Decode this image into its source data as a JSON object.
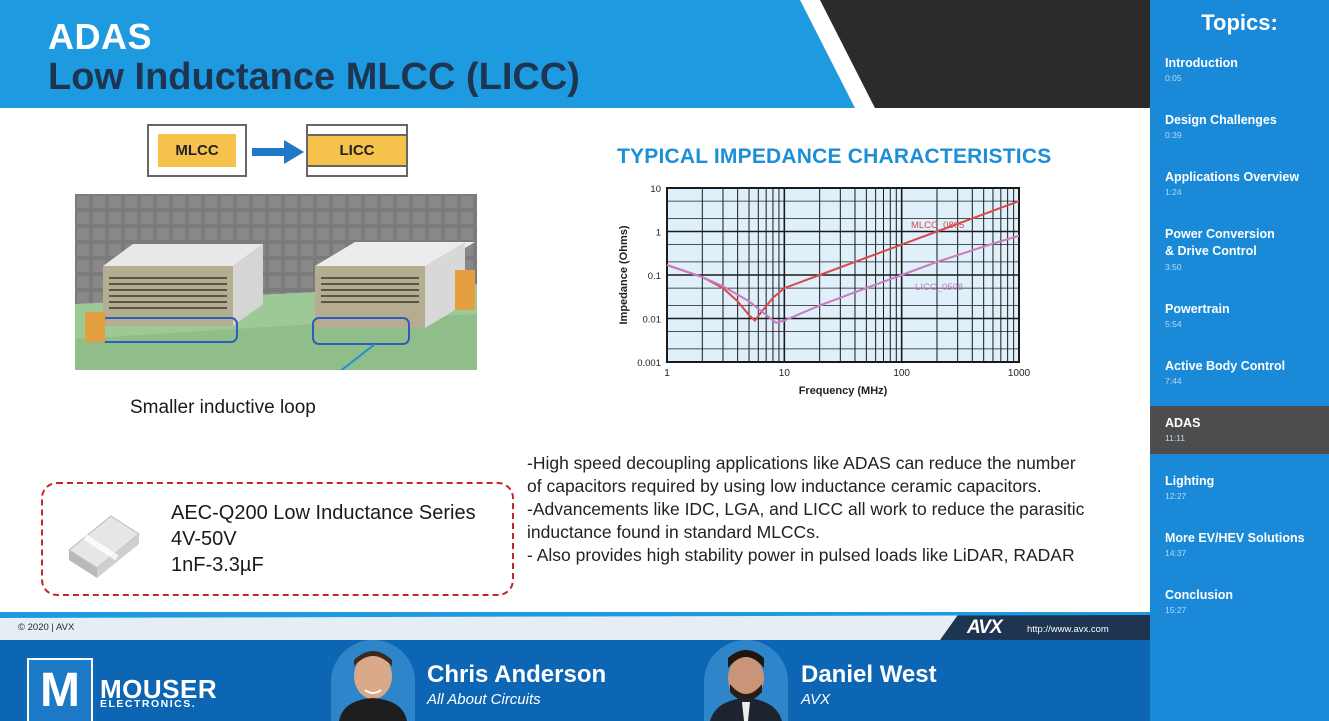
{
  "slide": {
    "title_line1": "ADAS",
    "title_line2": "Low Inductance MLCC (LICC)",
    "diagram": {
      "left_chip_label": "MLCC",
      "right_chip_label": "LICC",
      "caption": "Smaller inductive loop"
    },
    "chart_title": "TYPICAL IMPEDANCE CHARACTERISTICS",
    "bullets": [
      "-High speed decoupling applications like ADAS can reduce the number",
      "of capacitors required by using low inductance ceramic capacitors.",
      "-Advancements like IDC, LGA, and LICC all work to reduce the parasitic",
      "inductance found in standard MLCCs.",
      "- Also provides high stability power in pulsed loads like LiDAR, RADAR"
    ],
    "product_card": {
      "line1": "AEC-Q200 Low Inductance Series",
      "line2": "4V-50V",
      "line3": "1nF-3.3µF"
    },
    "footer": {
      "copyright": "© 2020 | AVX",
      "logo": "AVX",
      "url": "http://www.avx.com"
    }
  },
  "chart_data": {
    "type": "line",
    "title": "TYPICAL IMPEDANCE CHARACTERISTICS",
    "xlabel": "Frequency (MHz)",
    "ylabel": "Impedance (Ohms)",
    "x_scale": "log",
    "y_scale": "log",
    "xlim": [
      1,
      1000
    ],
    "ylim": [
      0.001,
      10
    ],
    "x_ticks": [
      "1",
      "10",
      "100",
      "1000"
    ],
    "y_ticks": [
      "10",
      "1",
      "0.1",
      "0.01",
      "0.001"
    ],
    "grid": true,
    "series": [
      {
        "name": "MLCC_0805",
        "color": "#d9494f",
        "x": [
          1,
          2,
          3,
          4,
          5,
          5.6,
          6.5,
          8,
          10,
          20,
          50,
          100,
          200,
          500,
          1000
        ],
        "y": [
          0.17,
          0.09,
          0.05,
          0.025,
          0.012,
          0.009,
          0.015,
          0.03,
          0.05,
          0.1,
          0.25,
          0.5,
          1.0,
          2.5,
          5.0
        ]
      },
      {
        "name": "LICC_0508",
        "color": "#c97bbe",
        "x": [
          1,
          2,
          3,
          5,
          7,
          8.5,
          10,
          20,
          50,
          100,
          200,
          500,
          1000
        ],
        "y": [
          0.17,
          0.09,
          0.055,
          0.025,
          0.012,
          0.008,
          0.009,
          0.02,
          0.05,
          0.1,
          0.2,
          0.45,
          0.8
        ]
      }
    ]
  },
  "sidebar": {
    "title": "Topics:",
    "active_index": 6,
    "items": [
      {
        "label": "Introduction",
        "time": "0:05"
      },
      {
        "label": "Design Challenges",
        "time": "0:39"
      },
      {
        "label": "Applications Overview",
        "time": "1:24"
      },
      {
        "label": "Power Conversion\n& Drive Control",
        "time": "3:50"
      },
      {
        "label": "Powertrain",
        "time": "5:54"
      },
      {
        "label": "Active Body Control",
        "time": "7:44"
      },
      {
        "label": "ADAS",
        "time": "11:11"
      },
      {
        "label": "Lighting",
        "time": "12:27"
      },
      {
        "label": "More EV/HEV Solutions",
        "time": "14:37"
      },
      {
        "label": "Conclusion",
        "time": "15:27"
      }
    ]
  },
  "bottom": {
    "brand_mark": "M",
    "brand_name": "MOUSER",
    "brand_sub": "ELECTRONICS.",
    "speakers": [
      {
        "name": "Chris Anderson",
        "org": "All About Circuits"
      },
      {
        "name": "Daniel West",
        "org": "AVX"
      }
    ]
  },
  "colors": {
    "accent_blue": "#1d8fd8",
    "header_dark": "#2b2b2b",
    "sidebar_blue": "#1a8ad8",
    "active_topic": "#4d4d4d",
    "title_dark": "#1d3550"
  }
}
